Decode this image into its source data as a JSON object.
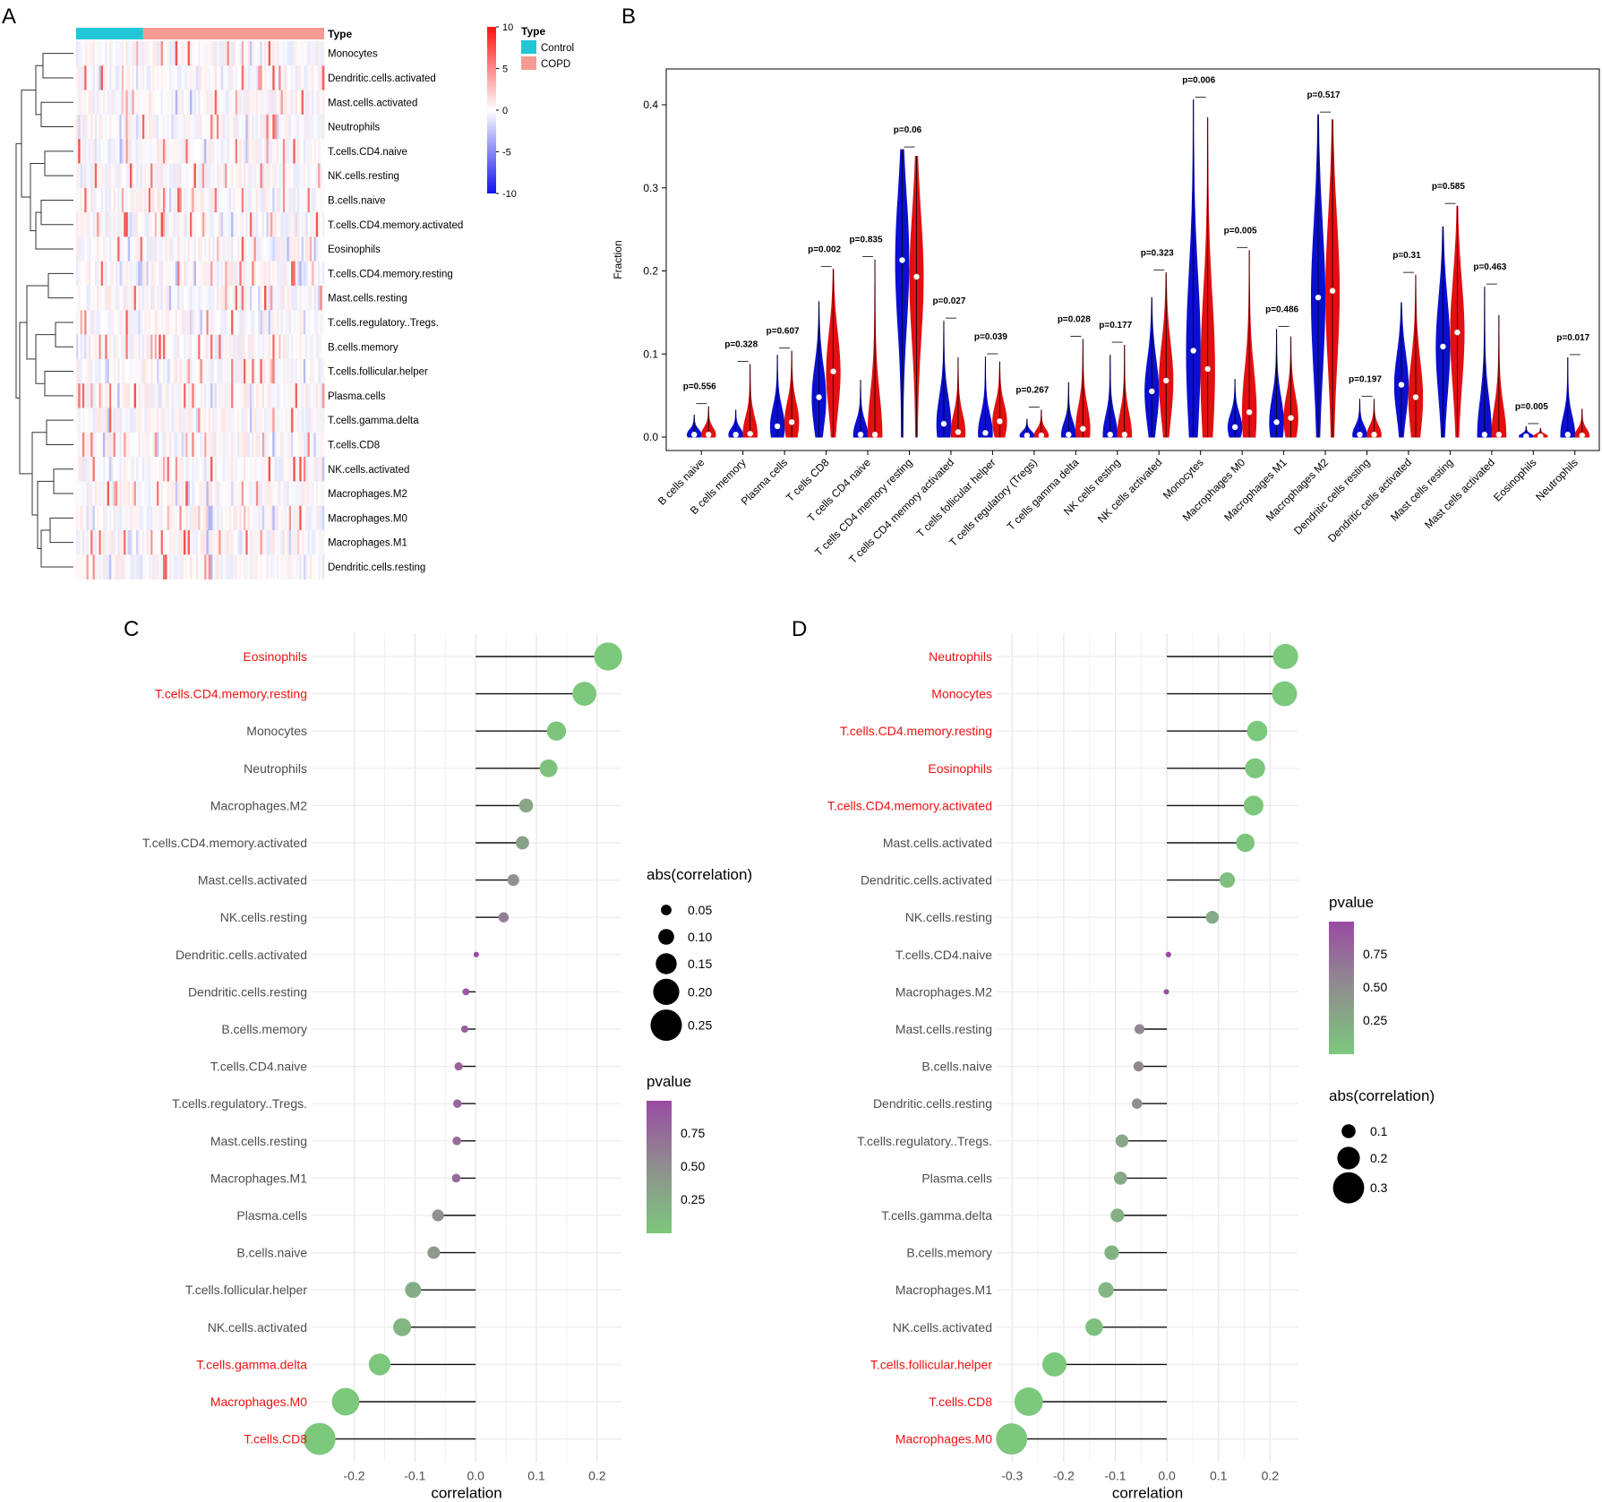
{
  "panel_labels": [
    "A",
    "B",
    "C",
    "D"
  ],
  "colors": {
    "control": "#21c7d6",
    "copd": "#f59b93",
    "violin_control": "#0a0fd0",
    "violin_copd": "#e21010",
    "highlight": "#ee1111",
    "label_gray": "#4d4d4d",
    "pval_high": "#9a4aa3",
    "pval_mid": "#8f8f8f",
    "pval_low": "#7cc87c"
  },
  "chart_data": [
    {
      "panel": "A",
      "type": "heatmap",
      "annotation_title": "Type",
      "legend": {
        "title": "Type",
        "entries": [
          "Control",
          "COPD"
        ]
      },
      "colorbar": {
        "ticks": [
          10,
          5,
          0,
          -5,
          -10
        ],
        "min": -10,
        "max": 10
      },
      "group_fraction_control": 0.27,
      "rows": [
        "Monocytes",
        "Dendritic.cells.activated",
        "Mast.cells.activated",
        "Neutrophils",
        "T.cells.CD4.naive",
        "NK.cells.resting",
        "B.cells.naive",
        "T.cells.CD4.memory.activated",
        "Eosinophils",
        "T.cells.CD4.memory.resting",
        "Mast.cells.resting",
        "T.cells.regulatory..Tregs.",
        "B.cells.memory",
        "T.cells.follicular.helper",
        "Plasma.cells",
        "T.cells.gamma.delta",
        "T.cells.CD8",
        "NK.cells.activated",
        "Macrophages.M2",
        "Macrophages.M0",
        "Macrophages.M1",
        "Dendritic.cells.resting"
      ]
    },
    {
      "panel": "B",
      "type": "violin",
      "ylabel": "Fraction",
      "ylim": [
        0,
        0.44
      ],
      "yticks": [
        0.0,
        0.1,
        0.2,
        0.3,
        0.4
      ],
      "series_names": [
        "Control",
        "COPD"
      ],
      "cells": [
        {
          "name": "B cells naive",
          "p": "p=0.556",
          "control": {
            "max": 0.027,
            "median": 0.003
          },
          "copd": {
            "max": 0.037,
            "median": 0.003
          }
        },
        {
          "name": "B cells memory",
          "p": "p=0.328",
          "control": {
            "max": 0.033,
            "median": 0.003
          },
          "copd": {
            "max": 0.088,
            "median": 0.004
          }
        },
        {
          "name": "Plasma cells",
          "p": "p=0.607",
          "control": {
            "max": 0.099,
            "median": 0.013
          },
          "copd": {
            "max": 0.104,
            "median": 0.018
          }
        },
        {
          "name": "T cells CD8",
          "p": "p=0.002",
          "control": {
            "max": 0.163,
            "median": 0.048
          },
          "copd": {
            "max": 0.202,
            "median": 0.079
          }
        },
        {
          "name": "T cells CD4 naive",
          "p": "p=0.835",
          "control": {
            "max": 0.069,
            "median": 0.003
          },
          "copd": {
            "max": 0.214,
            "median": 0.003
          }
        },
        {
          "name": "T cells CD4 memory resting",
          "p": "p=0.06",
          "control": {
            "max": 0.346,
            "median": 0.213
          },
          "copd": {
            "max": 0.338,
            "median": 0.193
          }
        },
        {
          "name": "T cells CD4 memory activated",
          "p": "p=0.027",
          "control": {
            "max": 0.14,
            "median": 0.016
          },
          "copd": {
            "max": 0.096,
            "median": 0.006
          }
        },
        {
          "name": "T cells follicular helper",
          "p": "p=0.039",
          "control": {
            "max": 0.097,
            "median": 0.005
          },
          "copd": {
            "max": 0.091,
            "median": 0.019
          }
        },
        {
          "name": "T cells regulatory (Tregs)",
          "p": "p=0.267",
          "control": {
            "max": 0.022,
            "median": 0.002
          },
          "copd": {
            "max": 0.033,
            "median": 0.002
          }
        },
        {
          "name": "T cells gamma delta",
          "p": "p=0.028",
          "control": {
            "max": 0.066,
            "median": 0.003
          },
          "copd": {
            "max": 0.118,
            "median": 0.01
          }
        },
        {
          "name": "NK cells resting",
          "p": "p=0.177",
          "control": {
            "max": 0.099,
            "median": 0.003
          },
          "copd": {
            "max": 0.111,
            "median": 0.003
          }
        },
        {
          "name": "NK cells activated",
          "p": "p=0.323",
          "control": {
            "max": 0.168,
            "median": 0.055
          },
          "copd": {
            "max": 0.198,
            "median": 0.068
          }
        },
        {
          "name": "Monocytes",
          "p": "p=0.006",
          "control": {
            "max": 0.406,
            "median": 0.104
          },
          "copd": {
            "max": 0.385,
            "median": 0.082
          }
        },
        {
          "name": "Macrophages M0",
          "p": "p=0.005",
          "control": {
            "max": 0.07,
            "median": 0.012
          },
          "copd": {
            "max": 0.225,
            "median": 0.03
          }
        },
        {
          "name": "Macrophages M1",
          "p": "p=0.486",
          "control": {
            "max": 0.13,
            "median": 0.018
          },
          "copd": {
            "max": 0.121,
            "median": 0.023
          }
        },
        {
          "name": "Macrophages M2",
          "p": "p=0.517",
          "control": {
            "max": 0.388,
            "median": 0.168
          },
          "copd": {
            "max": 0.382,
            "median": 0.176
          }
        },
        {
          "name": "Dendritic cells resting",
          "p": "p=0.197",
          "control": {
            "max": 0.046,
            "median": 0.003
          },
          "copd": {
            "max": 0.046,
            "median": 0.003
          }
        },
        {
          "name": "Dendritic cells activated",
          "p": "p=0.31",
          "control": {
            "max": 0.162,
            "median": 0.063
          },
          "copd": {
            "max": 0.195,
            "median": 0.048
          }
        },
        {
          "name": "Mast cells resting",
          "p": "p=0.585",
          "control": {
            "max": 0.253,
            "median": 0.109
          },
          "copd": {
            "max": 0.278,
            "median": 0.126
          }
        },
        {
          "name": "Mast cells activated",
          "p": "p=0.463",
          "control": {
            "max": 0.181,
            "median": 0.003
          },
          "copd": {
            "max": 0.147,
            "median": 0.003
          }
        },
        {
          "name": "Eosinophils",
          "p": "p=0.005",
          "control": {
            "max": 0.013,
            "median": 0.001
          },
          "copd": {
            "max": 0.011,
            "median": 0.001
          }
        },
        {
          "name": "Neutrophils",
          "p": "p=0.017",
          "control": {
            "max": 0.096,
            "median": 0.003
          },
          "copd": {
            "max": 0.034,
            "median": 0.002
          }
        }
      ]
    },
    {
      "panel": "C",
      "type": "lollipop",
      "xlabel": "correlation",
      "xlim": [
        -0.27,
        0.24
      ],
      "xticks": [
        -0.2,
        -0.1,
        0.0,
        0.1,
        0.2
      ],
      "xtick_labels": [
        "-0.2",
        "-0.1",
        "0.0",
        "0.1",
        "0.2"
      ],
      "size_legend": {
        "title": "abs(correlation)",
        "values": [
          0.05,
          0.1,
          0.15,
          0.2,
          0.25
        ],
        "labels": [
          "0.05",
          "0.10",
          "0.15",
          "0.20",
          "0.25"
        ]
      },
      "color_legend": {
        "title": "pvalue",
        "ticks": [
          "0.75",
          "0.50",
          "0.25"
        ]
      },
      "rows": [
        {
          "label": "Eosinophils",
          "r": 0.218,
          "p": 0.001,
          "highlight": true
        },
        {
          "label": "T.cells.CD4.memory.resting",
          "r": 0.179,
          "p": 0.01,
          "highlight": true
        },
        {
          "label": "Monocytes",
          "r": 0.133,
          "p": 0.05,
          "highlight": false
        },
        {
          "label": "Neutrophils",
          "r": 0.12,
          "p": 0.08,
          "highlight": false
        },
        {
          "label": "Macrophages.M2",
          "r": 0.083,
          "p": 0.3,
          "highlight": false
        },
        {
          "label": "T.cells.CD4.memory.activated",
          "r": 0.077,
          "p": 0.35,
          "highlight": false
        },
        {
          "label": "Mast.cells.activated",
          "r": 0.062,
          "p": 0.45,
          "highlight": false
        },
        {
          "label": "NK.cells.resting",
          "r": 0.046,
          "p": 0.6,
          "highlight": false
        },
        {
          "label": "Dendritic.cells.activated",
          "r": 0.001,
          "p": 0.97,
          "highlight": false
        },
        {
          "label": "Dendritic.cells.resting",
          "r": -0.016,
          "p": 0.85,
          "highlight": false
        },
        {
          "label": "B.cells.memory",
          "r": -0.018,
          "p": 0.83,
          "highlight": false
        },
        {
          "label": "T.cells.CD4.naive",
          "r": -0.028,
          "p": 0.78,
          "highlight": false
        },
        {
          "label": "T.cells.regulatory..Tregs.",
          "r": -0.03,
          "p": 0.75,
          "highlight": false
        },
        {
          "label": "Mast.cells.resting",
          "r": -0.031,
          "p": 0.74,
          "highlight": false
        },
        {
          "label": "Macrophages.M1",
          "r": -0.032,
          "p": 0.73,
          "highlight": false
        },
        {
          "label": "Plasma.cells",
          "r": -0.062,
          "p": 0.48,
          "highlight": false
        },
        {
          "label": "B.cells.naive",
          "r": -0.069,
          "p": 0.42,
          "highlight": false
        },
        {
          "label": "T.cells.follicular.helper",
          "r": -0.103,
          "p": 0.25,
          "highlight": false
        },
        {
          "label": "NK.cells.activated",
          "r": -0.121,
          "p": 0.17,
          "highlight": false
        },
        {
          "label": "T.cells.gamma.delta",
          "r": -0.158,
          "p": 0.03,
          "highlight": true
        },
        {
          "label": "Macrophages.M0",
          "r": -0.214,
          "p": 0.005,
          "highlight": true
        },
        {
          "label": "T.cells.CD8",
          "r": -0.257,
          "p": 0.001,
          "highlight": true
        }
      ]
    },
    {
      "panel": "D",
      "type": "lollipop",
      "xlabel": "correlation",
      "xlim": [
        -0.33,
        0.255
      ],
      "xticks": [
        -0.3,
        -0.2,
        -0.1,
        0.0,
        0.1,
        0.2
      ],
      "xtick_labels": [
        "-0.3",
        "-0.2",
        "-0.1",
        "0.0",
        "0.1",
        "0.2"
      ],
      "size_legend": {
        "title": "abs(correlation)",
        "values": [
          0.1,
          0.2,
          0.3
        ],
        "labels": [
          "0.1",
          "0.2",
          "0.3"
        ]
      },
      "color_legend": {
        "title": "pvalue",
        "ticks": [
          "0.75",
          "0.50",
          "0.25"
        ]
      },
      "rows": [
        {
          "label": "Neutrophils",
          "r": 0.23,
          "p": 0.002,
          "highlight": true
        },
        {
          "label": "Monocytes",
          "r": 0.228,
          "p": 0.003,
          "highlight": true
        },
        {
          "label": "T.cells.CD4.memory.resting",
          "r": 0.175,
          "p": 0.02,
          "highlight": true
        },
        {
          "label": "Eosinophils",
          "r": 0.171,
          "p": 0.025,
          "highlight": true
        },
        {
          "label": "T.cells.CD4.memory.activated",
          "r": 0.168,
          "p": 0.03,
          "highlight": true
        },
        {
          "label": "Mast.cells.activated",
          "r": 0.152,
          "p": 0.05,
          "highlight": false
        },
        {
          "label": "Dendritic.cells.activated",
          "r": 0.117,
          "p": 0.1,
          "highlight": false
        },
        {
          "label": "NK.cells.resting",
          "r": 0.088,
          "p": 0.25,
          "highlight": false
        },
        {
          "label": "T.cells.CD4.naive",
          "r": 0.003,
          "p": 0.97,
          "highlight": false
        },
        {
          "label": "Macrophages.M2",
          "r": -0.001,
          "p": 0.98,
          "highlight": false
        },
        {
          "label": "Mast.cells.resting",
          "r": -0.053,
          "p": 0.55,
          "highlight": false
        },
        {
          "label": "B.cells.naive",
          "r": -0.055,
          "p": 0.53,
          "highlight": false
        },
        {
          "label": "Dendritic.cells.resting",
          "r": -0.058,
          "p": 0.5,
          "highlight": false
        },
        {
          "label": "T.cells.regulatory..Tregs.",
          "r": -0.087,
          "p": 0.3,
          "highlight": false
        },
        {
          "label": "Plasma.cells",
          "r": -0.09,
          "p": 0.28,
          "highlight": false
        },
        {
          "label": "T.cells.gamma.delta",
          "r": -0.096,
          "p": 0.24,
          "highlight": false
        },
        {
          "label": "B.cells.memory",
          "r": -0.107,
          "p": 0.2,
          "highlight": false
        },
        {
          "label": "Macrophages.M1",
          "r": -0.118,
          "p": 0.16,
          "highlight": false
        },
        {
          "label": "NK.cells.activated",
          "r": -0.141,
          "p": 0.09,
          "highlight": false
        },
        {
          "label": "T.cells.follicular.helper",
          "r": -0.218,
          "p": 0.005,
          "highlight": true
        },
        {
          "label": "T.cells.CD8",
          "r": -0.268,
          "p": 0.001,
          "highlight": true
        },
        {
          "label": "Macrophages.M0",
          "r": -0.301,
          "p": 0.0005,
          "highlight": true
        }
      ]
    }
  ]
}
